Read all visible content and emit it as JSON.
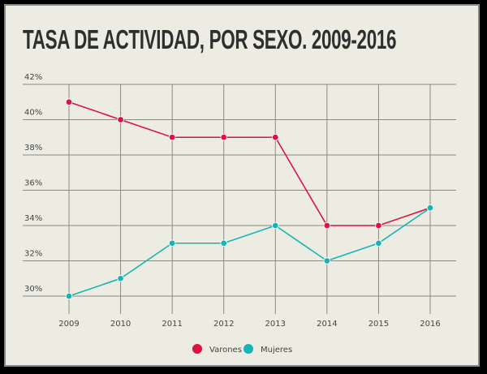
{
  "chart_data": {
    "type": "line",
    "title": "TASA DE ACTIVIDAD, POR SEXO. 2009-2016",
    "categories": [
      "2009",
      "2010",
      "2011",
      "2012",
      "2013",
      "2014",
      "2015",
      "2016"
    ],
    "series": [
      {
        "name": "Varones",
        "color": "#e0103f",
        "values": [
          41,
          40,
          39,
          39,
          39,
          34,
          34,
          35
        ]
      },
      {
        "name": "Mujeres",
        "color": "#16b5b5",
        "values": [
          30,
          31,
          33,
          33,
          34,
          32,
          33,
          35
        ]
      }
    ],
    "yticks": [
      "30%",
      "32%",
      "34%",
      "36%",
      "38%",
      "40%",
      "42%"
    ],
    "ylim": [
      30,
      42
    ],
    "grid": true,
    "legend": "bottom-center"
  }
}
